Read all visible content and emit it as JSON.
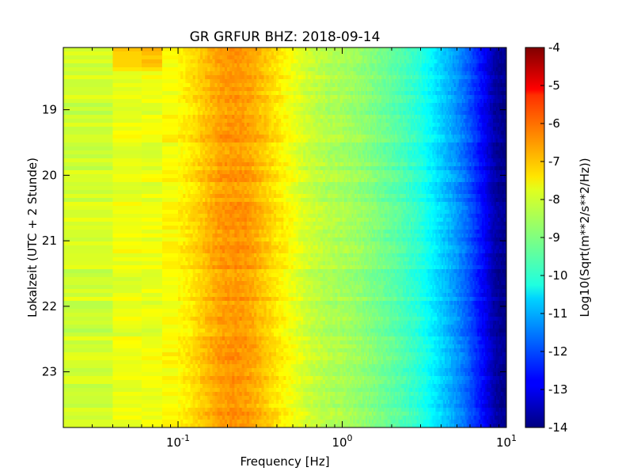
{
  "chart_data": {
    "type": "heatmap",
    "title": "GR GRFUR BHZ: 2018-09-14",
    "xlabel": "Frequency [Hz]",
    "ylabel": "Lokalzeit (UTC + 2 Stunde)",
    "x_scale": "log",
    "xlim": [
      0.02,
      10
    ],
    "ylim": [
      18.05,
      23.85
    ],
    "x_ticks": [
      {
        "value": 0.1,
        "base": "10",
        "exp": "-1"
      },
      {
        "value": 1,
        "base": "10",
        "exp": "0"
      },
      {
        "value": 10,
        "base": "10",
        "exp": "1"
      }
    ],
    "y_ticks": [
      {
        "value": 19,
        "label": "19"
      },
      {
        "value": 20,
        "label": "20"
      },
      {
        "value": 21,
        "label": "21"
      },
      {
        "value": 22,
        "label": "22"
      },
      {
        "value": 23,
        "label": "23"
      }
    ],
    "colorbar": {
      "label": "Log10(Sqrt(m**2/s**2/Hz))",
      "colormap": "jet",
      "range": [
        -14,
        -4
      ],
      "ticks": [
        "-4",
        "-5",
        "-6",
        "-7",
        "-8",
        "-9",
        "-10",
        "-11",
        "-12",
        "-13",
        "-14"
      ]
    },
    "spectrum_profile": {
      "description": "average level vs frequency",
      "frequency_hz": [
        0.02,
        0.04,
        0.06,
        0.08,
        0.1,
        0.12,
        0.15,
        0.18,
        0.22,
        0.27,
        0.32,
        0.4,
        0.5,
        0.6,
        0.8,
        1.0,
        1.3,
        1.7,
        2.2,
        3.0,
        3.6,
        4.5,
        5.5,
        6.5,
        7.5,
        8.5,
        10.0
      ],
      "level": [
        -8.5,
        -7.9,
        -8.0,
        -7.8,
        -7.7,
        -7.5,
        -7.1,
        -6.8,
        -6.7,
        -6.8,
        -7.1,
        -7.5,
        -7.9,
        -8.2,
        -8.5,
        -8.6,
        -8.8,
        -9.1,
        -9.4,
        -9.9,
        -10.4,
        -11.0,
        -11.6,
        -12.3,
        -12.9,
        -13.6,
        -13.9
      ]
    },
    "grid": false
  }
}
